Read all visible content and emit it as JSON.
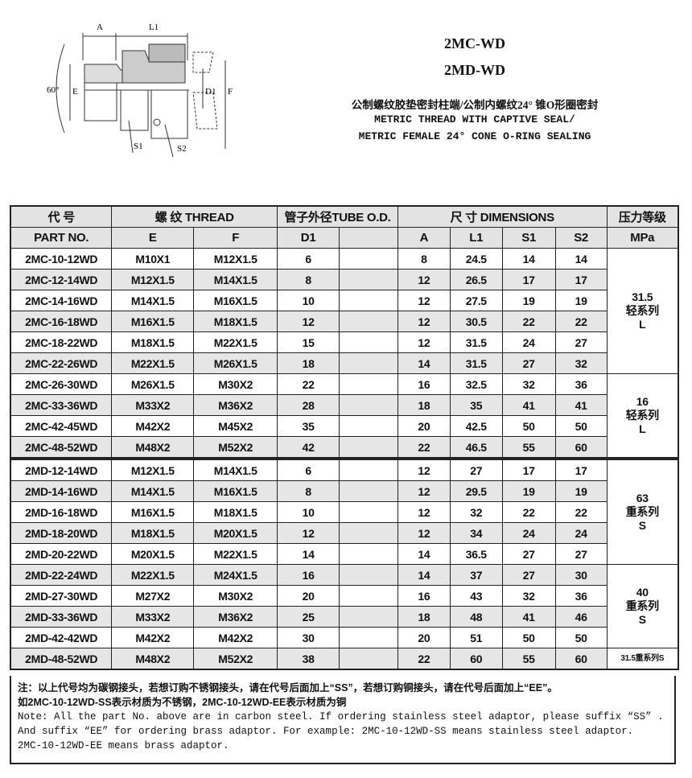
{
  "header": {
    "model_1": "2MC-WD",
    "model_2": "2MD-WD",
    "desc_cn": "公制螺纹胶垫密封柱端/公制内螺纹24° 锥O形圈密封",
    "desc_en_1": "METRIC THREAD WITH CAPTIVE SEAL/",
    "desc_en_2": "METRIC FEMALE 24° CONE O-RING SEALING"
  },
  "diagram": {
    "labels": {
      "A": "A",
      "L1": "L1",
      "angle": "60°",
      "E": "E",
      "D1": "D1",
      "F": "F",
      "S1": "S1",
      "S2": "S2"
    }
  },
  "table": {
    "group_headers": [
      "代  号",
      "螺  纹   THREAD",
      "管子外径TUBE O.D.",
      "尺  寸    DIMENSIONS",
      "压力等级"
    ],
    "columns": [
      "PART  NO.",
      "E",
      "F",
      "D1",
      "",
      "A",
      "L1",
      "S1",
      "S2",
      "MPa"
    ],
    "rows": [
      [
        "2MC-10-12WD",
        "M10X1",
        "M12X1.5",
        "6",
        "",
        "8",
        "24.5",
        "14",
        "14"
      ],
      [
        "2MC-12-14WD",
        "M12X1.5",
        "M14X1.5",
        "8",
        "",
        "12",
        "26.5",
        "17",
        "17"
      ],
      [
        "2MC-14-16WD",
        "M14X1.5",
        "M16X1.5",
        "10",
        "",
        "12",
        "27.5",
        "19",
        "19"
      ],
      [
        "2MC-16-18WD",
        "M16X1.5",
        "M18X1.5",
        "12",
        "",
        "12",
        "30.5",
        "22",
        "22"
      ],
      [
        "2MC-18-22WD",
        "M18X1.5",
        "M22X1.5",
        "15",
        "",
        "12",
        "31.5",
        "24",
        "27"
      ],
      [
        "2MC-22-26WD",
        "M22X1.5",
        "M26X1.5",
        "18",
        "",
        "14",
        "31.5",
        "27",
        "32"
      ],
      [
        "2MC-26-30WD",
        "M26X1.5",
        "M30X2",
        "22",
        "",
        "16",
        "32.5",
        "32",
        "36"
      ],
      [
        "2MC-33-36WD",
        "M33X2",
        "M36X2",
        "28",
        "",
        "18",
        "35",
        "41",
        "41"
      ],
      [
        "2MC-42-45WD",
        "M42X2",
        "M45X2",
        "35",
        "",
        "20",
        "42.5",
        "50",
        "50"
      ],
      [
        "2MC-48-52WD",
        "M48X2",
        "M52X2",
        "42",
        "",
        "22",
        "46.5",
        "55",
        "60"
      ],
      [
        "2MD-12-14WD",
        "M12X1.5",
        "M14X1.5",
        "6",
        "",
        "12",
        "27",
        "17",
        "17"
      ],
      [
        "2MD-14-16WD",
        "M14X1.5",
        "M16X1.5",
        "8",
        "",
        "12",
        "29.5",
        "19",
        "19"
      ],
      [
        "2MD-16-18WD",
        "M16X1.5",
        "M18X1.5",
        "10",
        "",
        "12",
        "32",
        "22",
        "22"
      ],
      [
        "2MD-18-20WD",
        "M18X1.5",
        "M20X1.5",
        "12",
        "",
        "12",
        "34",
        "24",
        "24"
      ],
      [
        "2MD-20-22WD",
        "M20X1.5",
        "M22X1.5",
        "14",
        "",
        "14",
        "36.5",
        "27",
        "27"
      ],
      [
        "2MD-22-24WD",
        "M22X1.5",
        "M24X1.5",
        "16",
        "",
        "14",
        "37",
        "27",
        "30"
      ],
      [
        "2MD-27-30WD",
        "M27X2",
        "M30X2",
        "20",
        "",
        "16",
        "43",
        "32",
        "36"
      ],
      [
        "2MD-33-36WD",
        "M33X2",
        "M36X2",
        "25",
        "",
        "18",
        "48",
        "41",
        "46"
      ],
      [
        "2MD-42-42WD",
        "M42X2",
        "M42X2",
        "30",
        "",
        "20",
        "51",
        "50",
        "50"
      ],
      [
        "2MD-48-52WD",
        "M48X2",
        "M52X2",
        "38",
        "",
        "22",
        "60",
        "55",
        "60"
      ]
    ],
    "pressure_groups": [
      {
        "start": 0,
        "span": 6,
        "lines": [
          "31.5",
          "轻系列",
          "L"
        ]
      },
      {
        "start": 6,
        "span": 4,
        "lines": [
          "16",
          "轻系列",
          "L"
        ]
      },
      {
        "start": 10,
        "span": 5,
        "lines": [
          "63",
          "重系列",
          "S"
        ]
      },
      {
        "start": 15,
        "span": 4,
        "lines": [
          "40",
          "重系列",
          "S"
        ]
      },
      {
        "start": 19,
        "span": 1,
        "lines": [
          "31.5重系列S"
        ]
      }
    ]
  },
  "notes": {
    "cn_1": "注：以上代号均为碳钢接头，若想订购不锈钢接头，请在代号后面加上“SS”，若想订购铜接头，请在代号后面加上“EE”。",
    "cn_2": "如2MC-10-12WD-SS表示材质为不锈钢，2MC-10-12WD-EE表示材质为铜",
    "en_1": "Note: All the part No. above are in carbon steel. If ordering stainless steel adaptor, please suffix “SS” .",
    "en_2": "And suffix “EE” for ordering brass adaptor. For example: 2MC-10-12WD-SS  means stainless steel adaptor.",
    "en_3": "2MC-10-12WD-EE means brass adaptor."
  }
}
